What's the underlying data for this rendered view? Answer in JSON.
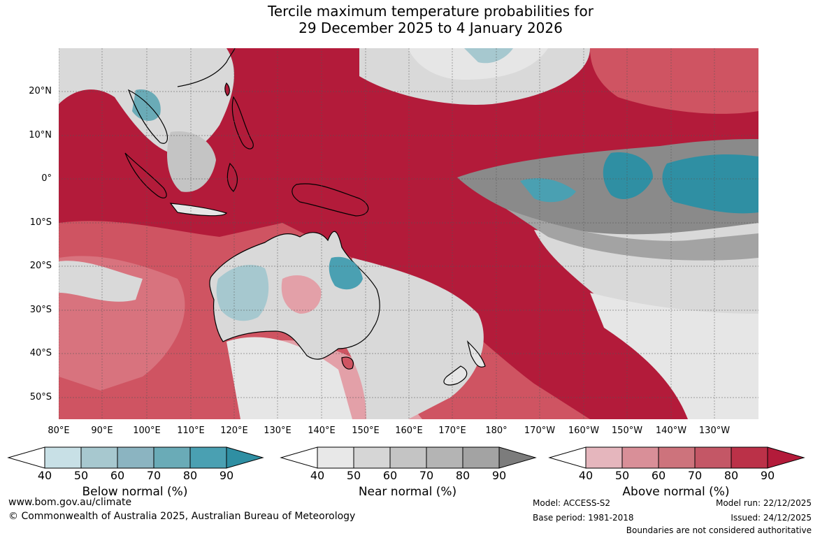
{
  "title": {
    "line1": "Tercile maximum temperature probabilities for",
    "line2": "29 December 2025 to 4 January 2026"
  },
  "map": {
    "lat_labels": [
      "20°N",
      "10°N",
      "0°",
      "10°S",
      "20°S",
      "30°S",
      "40°S",
      "50°S"
    ],
    "lon_labels": [
      "80°E",
      "90°E",
      "100°E",
      "110°E",
      "120°E",
      "130°E",
      "140°E",
      "150°E",
      "160°E",
      "170°E",
      "180°",
      "170°W",
      "160°W",
      "150°W",
      "140°W",
      "130°W"
    ],
    "colors": {
      "above_90": "#b31b3a",
      "above_80": "#c8374f",
      "above_70": "#cf5462",
      "above_60": "#d8737e",
      "above_50": "#e3a0a8",
      "near": "#d9d9d9",
      "near_light": "#e6e6e6",
      "near_dark": "#8a8a8a",
      "below_50": "#a6c8cf",
      "below_70": "#74afbd",
      "below_90": "#2f8fa3"
    }
  },
  "legend": {
    "ticks": [
      "40",
      "50",
      "60",
      "70",
      "80",
      "90"
    ],
    "below": {
      "label": "Below normal (%)",
      "colors": [
        "#ffffff",
        "#c8e0e6",
        "#a7c8cf",
        "#8bb4c1",
        "#6aabb7",
        "#4aa0b2",
        "#2f8fa3"
      ]
    },
    "near": {
      "label": "Near normal (%)",
      "colors": [
        "#ffffff",
        "#e8e8e8",
        "#d6d6d6",
        "#c4c4c4",
        "#b4b4b4",
        "#a3a3a3",
        "#7c7c7c"
      ]
    },
    "above": {
      "label": "Above normal (%)",
      "colors": [
        "#ffffff",
        "#e5b6bd",
        "#d98f98",
        "#cd737c",
        "#c45766",
        "#bb3148",
        "#b31b3a"
      ]
    }
  },
  "footer": {
    "website": "www.bom.gov.au/climate",
    "copyright": "© Commonwealth of Australia 2025, Australian Bureau of Meteorology",
    "model": "Model: ACCESS-S2",
    "base_period": "Base period: 1981-2018",
    "model_run": "Model run: 22/12/2025",
    "issued": "Issued: 24/12/2025",
    "boundaries": "Boundaries are not considered authoritative"
  }
}
